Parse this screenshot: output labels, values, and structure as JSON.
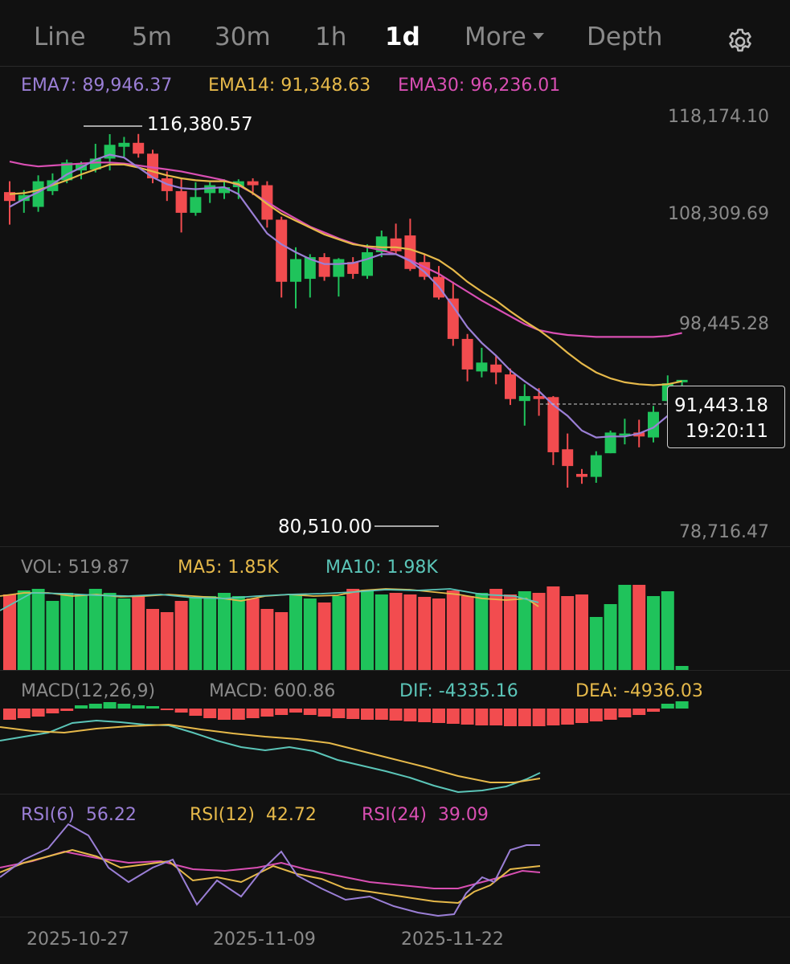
{
  "tabs": [
    "Line",
    "5m",
    "30m",
    "1h",
    "1d",
    "More",
    "Depth"
  ],
  "active_tab": "1d",
  "icons": {
    "settings": "gear-icon",
    "more": "chevron-down-icon"
  },
  "indicators": {
    "ema7": "EMA7: 89,946.37",
    "ema14": "EMA14: 91,348.63",
    "ema30": "EMA30: 96,236.01",
    "vol": "VOL: 519.87",
    "ma5": "MA5: 1.85K",
    "ma10": "MA10: 1.98K",
    "macd_label": "MACD(12,26,9)",
    "macd": "MACD: 600.86",
    "dif": "DIF: -4335.16",
    "dea": "DEA: -4936.03",
    "rsi6_label": "RSI(6)",
    "rsi6": "56.22",
    "rsi12_label": "RSI(12)",
    "rsi12": "42.72",
    "rsi24_label": "RSI(24)",
    "rsi24": "39.09"
  },
  "price_axis": [
    "118,174.10",
    "108,309.69",
    "98,445.28",
    "78,716.47"
  ],
  "annotations": {
    "high": "116,380.57",
    "low": "80,510.00"
  },
  "current": {
    "price": "91,443.18",
    "countdown": "19:20:11"
  },
  "dates": [
    "2025-10-27",
    "2025-11-09",
    "2025-11-22"
  ],
  "colors": {
    "up": "#1fc35b",
    "down": "#f24c4f",
    "ema7": "#9b7fd6",
    "ema14": "#e6b94a",
    "ema30": "#d94fb3",
    "ma10": "#5bc5b8",
    "background": "#111111"
  },
  "chart_data": {
    "type": "candlestick",
    "price_range": [
      78716.47,
      118174.1
    ],
    "candles": [
      {
        "o": 110500,
        "h": 111600,
        "l": 107200,
        "c": 109600
      },
      {
        "o": 109600,
        "h": 110700,
        "l": 108400,
        "c": 110200
      },
      {
        "o": 109000,
        "h": 112200,
        "l": 108500,
        "c": 111600
      },
      {
        "o": 110600,
        "h": 112400,
        "l": 110200,
        "c": 111700
      },
      {
        "o": 111700,
        "h": 113800,
        "l": 111400,
        "c": 113500
      },
      {
        "o": 112700,
        "h": 113600,
        "l": 111800,
        "c": 113300
      },
      {
        "o": 112800,
        "h": 115400,
        "l": 112500,
        "c": 113900
      },
      {
        "o": 113900,
        "h": 116380,
        "l": 112700,
        "c": 115300
      },
      {
        "o": 115100,
        "h": 116100,
        "l": 114100,
        "c": 115500
      },
      {
        "o": 115500,
        "h": 116400,
        "l": 114000,
        "c": 114400
      },
      {
        "o": 114400,
        "h": 114800,
        "l": 111400,
        "c": 111900
      },
      {
        "o": 111900,
        "h": 112600,
        "l": 109600,
        "c": 110600
      },
      {
        "o": 110600,
        "h": 111900,
        "l": 106400,
        "c": 108400
      },
      {
        "o": 108400,
        "h": 111500,
        "l": 108100,
        "c": 110000
      },
      {
        "o": 110400,
        "h": 111500,
        "l": 109400,
        "c": 111200
      },
      {
        "o": 110400,
        "h": 111800,
        "l": 109800,
        "c": 111000
      },
      {
        "o": 111000,
        "h": 111800,
        "l": 109800,
        "c": 111600
      },
      {
        "o": 111600,
        "h": 111900,
        "l": 110200,
        "c": 111200
      },
      {
        "o": 111200,
        "h": 111600,
        "l": 106900,
        "c": 107700
      },
      {
        "o": 107700,
        "h": 108000,
        "l": 99800,
        "c": 101400
      },
      {
        "o": 101400,
        "h": 104900,
        "l": 98700,
        "c": 103700
      },
      {
        "o": 101700,
        "h": 104200,
        "l": 99800,
        "c": 103900
      },
      {
        "o": 103900,
        "h": 104300,
        "l": 101500,
        "c": 101900
      },
      {
        "o": 101900,
        "h": 103800,
        "l": 99900,
        "c": 103700
      },
      {
        "o": 103400,
        "h": 103900,
        "l": 101700,
        "c": 102200
      },
      {
        "o": 102000,
        "h": 105200,
        "l": 101700,
        "c": 104400
      },
      {
        "o": 104400,
        "h": 106600,
        "l": 103900,
        "c": 106000
      },
      {
        "o": 105800,
        "h": 107300,
        "l": 104200,
        "c": 104500
      },
      {
        "o": 106100,
        "h": 107800,
        "l": 102500,
        "c": 102700
      },
      {
        "o": 103400,
        "h": 104200,
        "l": 101600,
        "c": 101900
      },
      {
        "o": 101900,
        "h": 103000,
        "l": 99600,
        "c": 99800
      },
      {
        "o": 99700,
        "h": 101400,
        "l": 94900,
        "c": 95600
      },
      {
        "o": 95600,
        "h": 96100,
        "l": 91300,
        "c": 92500
      },
      {
        "o": 92300,
        "h": 94700,
        "l": 91700,
        "c": 93200
      },
      {
        "o": 93000,
        "h": 93900,
        "l": 91000,
        "c": 92200
      },
      {
        "o": 92000,
        "h": 92600,
        "l": 88900,
        "c": 89500
      },
      {
        "o": 89300,
        "h": 91000,
        "l": 86800,
        "c": 89800
      },
      {
        "o": 89800,
        "h": 90600,
        "l": 87800,
        "c": 89500
      },
      {
        "o": 89700,
        "h": 89800,
        "l": 82800,
        "c": 84100
      },
      {
        "o": 84400,
        "h": 86000,
        "l": 80510,
        "c": 82700
      },
      {
        "o": 81900,
        "h": 82400,
        "l": 80900,
        "c": 81600
      },
      {
        "o": 81600,
        "h": 84200,
        "l": 81000,
        "c": 83800
      },
      {
        "o": 84000,
        "h": 86300,
        "l": 84000,
        "c": 86100
      },
      {
        "o": 85800,
        "h": 87500,
        "l": 84900,
        "c": 86000
      },
      {
        "o": 86100,
        "h": 87400,
        "l": 84600,
        "c": 85700
      },
      {
        "o": 85600,
        "h": 88800,
        "l": 85100,
        "c": 88200
      },
      {
        "o": 89300,
        "h": 91900,
        "l": 89100,
        "c": 91100
      },
      {
        "o": 91200,
        "h": 91400,
        "l": 90600,
        "c": 91443
      }
    ],
    "ema7": [
      109000,
      109800,
      110500,
      111300,
      112300,
      113000,
      113800,
      114300,
      114000,
      113000,
      112000,
      111300,
      110900,
      110800,
      110900,
      111000,
      110300,
      108300,
      106300,
      105200,
      104400,
      103700,
      103200,
      103200,
      103300,
      103700,
      104200,
      104200,
      103500,
      102400,
      100900,
      98900,
      96800,
      95200,
      93900,
      92400,
      91300,
      90300,
      88900,
      87800,
      86300,
      85600,
      85700,
      85700,
      86000,
      86600,
      87800,
      89000
    ],
    "ema14": [
      110300,
      110400,
      110700,
      111200,
      111700,
      112300,
      112800,
      113300,
      113300,
      113000,
      112600,
      112200,
      111900,
      111700,
      111600,
      111600,
      111300,
      110400,
      109300,
      108300,
      107600,
      106900,
      106200,
      105700,
      105200,
      105000,
      104900,
      104900,
      104700,
      104200,
      103600,
      102600,
      101400,
      100400,
      99500,
      98400,
      97400,
      96500,
      95400,
      94200,
      93100,
      92200,
      91600,
      91200,
      91000,
      90900,
      91000,
      91300
    ],
    "ema30": [
      113600,
      113300,
      113100,
      113200,
      113300,
      113400,
      113500,
      113500,
      113400,
      113200,
      113000,
      112800,
      112600,
      112300,
      112000,
      111700,
      111200,
      110400,
      109500,
      108600,
      107800,
      107000,
      106400,
      105800,
      105300,
      104900,
      104600,
      104200,
      103600,
      102900,
      102200,
      101300,
      100400,
      99500,
      98700,
      97900,
      97100,
      96500,
      96200,
      96000,
      95900,
      95800,
      95800,
      95800,
      95800,
      95800,
      95900,
      96200
    ]
  }
}
